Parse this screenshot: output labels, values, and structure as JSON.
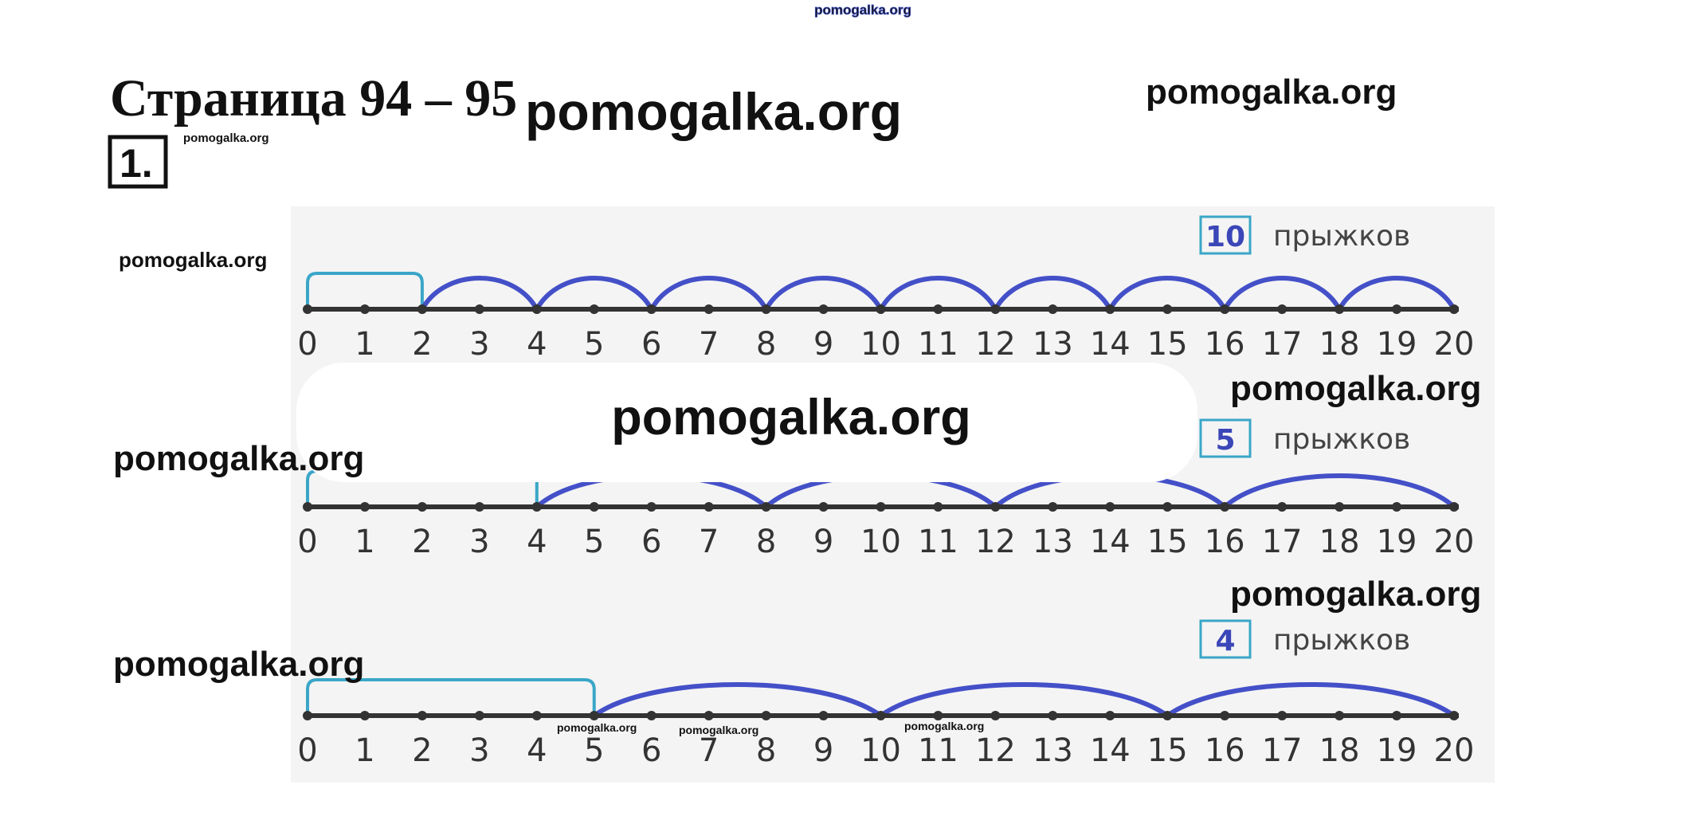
{
  "header": {
    "title": "Страница 94 – 95",
    "task": "1."
  },
  "watermarks": [
    "pomogalka.org",
    "pomogalka.org",
    "pomogalka.org",
    "pomogalka.org",
    "pomogalka.org",
    "pomogalka.org",
    "pomogalka.org",
    "pomogalka.org",
    "pomogalka.org",
    "pomogalka.org",
    "pomogalka.org",
    "pomogalka.org",
    "pomogalka.org"
  ],
  "number_lines": [
    {
      "jumps": "10",
      "caption": "прыжков",
      "ticks": [
        0,
        1,
        2,
        3,
        4,
        5,
        6,
        7,
        8,
        9,
        10,
        11,
        12,
        13,
        14,
        15,
        16,
        17,
        18,
        19,
        20
      ]
    },
    {
      "jumps": "5",
      "caption": "прыжков",
      "ticks": [
        0,
        1,
        2,
        3,
        4,
        5,
        6,
        7,
        8,
        9,
        10,
        11,
        12,
        13,
        14,
        15,
        16,
        17,
        18,
        19,
        20
      ]
    },
    {
      "jumps": "4",
      "caption": "прыжков",
      "ticks": [
        0,
        1,
        2,
        3,
        4,
        5,
        6,
        7,
        8,
        9,
        10,
        11,
        12,
        13,
        14,
        15,
        16,
        17,
        18,
        19,
        20
      ]
    }
  ]
}
